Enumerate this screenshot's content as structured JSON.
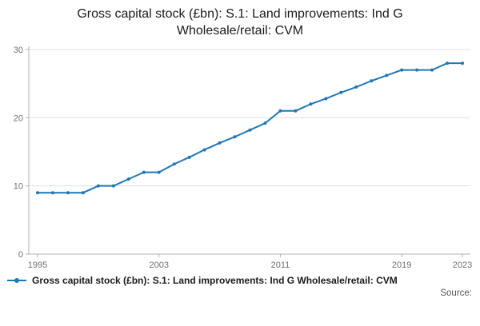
{
  "title": "Gross capital stock (£bn): S.1: Land improvements: Ind G Wholesale/retail: CVM",
  "legend": {
    "label": "Gross capital stock (£bn): S.1: Land improvements: Ind G Wholesale/retail: CVM"
  },
  "source": {
    "label": "Source:"
  },
  "chart_data": {
    "type": "line",
    "title": "Gross capital stock (£bn): S.1: Land improvements: Ind G Wholesale/retail: CVM",
    "xlabel": "",
    "ylabel": "",
    "xlim": [
      1995,
      2023
    ],
    "ylim": [
      0,
      30
    ],
    "x_ticks": [
      1995,
      2003,
      2011,
      2019,
      2023
    ],
    "y_ticks": [
      0,
      10,
      20,
      30
    ],
    "grid": true,
    "legend_position": "bottom",
    "line_color": "#1f77b4",
    "grid_color": "#e0e0e0",
    "axis_color": "#b3b3b3",
    "label_color": "#707071",
    "x": [
      1995,
      1996,
      1997,
      1998,
      1999,
      2000,
      2001,
      2002,
      2003,
      2004,
      2005,
      2006,
      2007,
      2008,
      2009,
      2010,
      2011,
      2012,
      2013,
      2014,
      2015,
      2016,
      2017,
      2018,
      2019,
      2020,
      2021,
      2022,
      2023
    ],
    "series": [
      {
        "name": "Gross capital stock (£bn): S.1: Land improvements: Ind G Wholesale/retail: CVM",
        "values": [
          9,
          9,
          9,
          9,
          10,
          10,
          11,
          12,
          12,
          13.2,
          14.2,
          15.3,
          16.3,
          17.2,
          18.2,
          19.2,
          21,
          21,
          22,
          22.8,
          23.7,
          24.5,
          25.4,
          26.2,
          27,
          27,
          27,
          28,
          28
        ]
      }
    ]
  }
}
